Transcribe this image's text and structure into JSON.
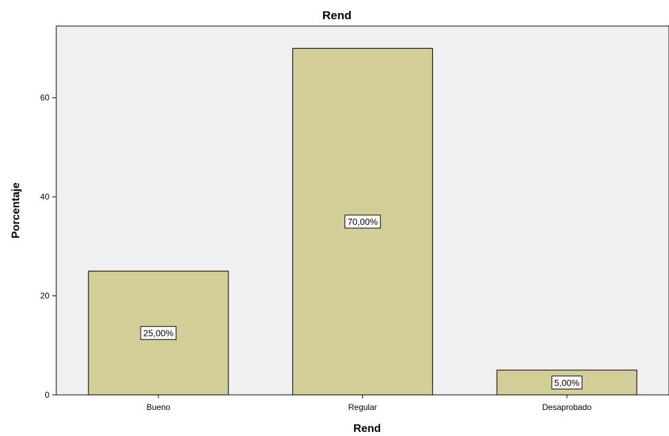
{
  "chart_data": {
    "type": "bar",
    "title": "Rend",
    "xlabel": "Rend",
    "ylabel": "Porcentaje",
    "categories": [
      "Bueno",
      "Regular",
      "Desaprobado"
    ],
    "values": [
      25,
      70,
      5
    ],
    "data_labels": [
      "25,00%",
      "70,00%",
      "5,00%"
    ],
    "yticks": [
      0,
      20,
      40,
      60
    ],
    "ylim": [
      0,
      74.5
    ],
    "grid": false,
    "legend": "none",
    "colors": {
      "bar_fill": "#d3cd98",
      "bar_stroke": "#1a1a1a",
      "plot_background": "#f0f0f0",
      "label_box": "#ffffff"
    }
  }
}
